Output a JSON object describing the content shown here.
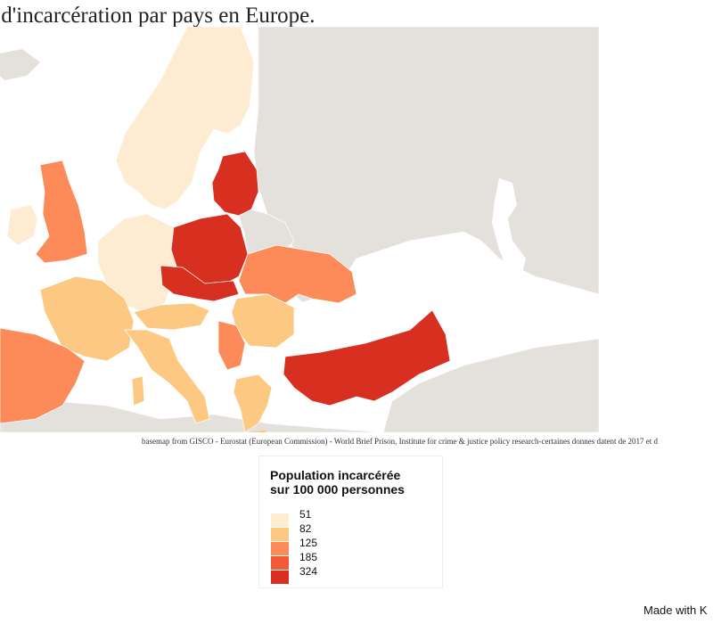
{
  "title": "ux d'incarcération par pays en Europe.",
  "source": "basemap from GISCO - Eurostat (European Commission) - World Brief Prison, Institute for crime & justice policy research-certaines donnes datent de 2017 et d",
  "legend": {
    "title_line1": "Population incarcérée",
    "title_line2": "sur 100 000 personnes",
    "classes": [
      {
        "label": "51",
        "color": "#fdebd2"
      },
      {
        "label": "82",
        "color": "#fdc982"
      },
      {
        "label": "125",
        "color": "#fc8b59"
      },
      {
        "label": "185",
        "color": "#f35a3a"
      },
      {
        "label": "324",
        "color": "#d73021"
      }
    ]
  },
  "colors": {
    "sea": "#ffffff",
    "land_nodata": "#e4e1dc",
    "border": "#ffffff"
  },
  "footer": "Made with K"
}
